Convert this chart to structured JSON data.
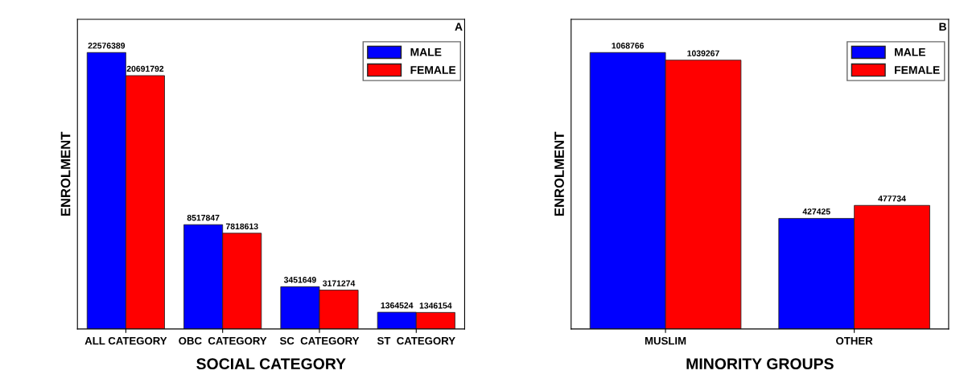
{
  "chart_data": [
    {
      "type": "bar",
      "xlabel": "SOCIAL CATEGORY",
      "ylabel": "ENROLMENT",
      "annotations": [
        "A"
      ],
      "categories": [
        "ALL CATEGORY",
        "OBC  CATEGORY",
        "SC  CATEGORY",
        "ST  CATEGORY"
      ],
      "series": [
        {
          "name": "MALE",
          "color": "#0000ff",
          "values": [
            22576389,
            8517847,
            3451649,
            1364524
          ]
        },
        {
          "name": "FEMALE",
          "color": "#ff0000",
          "values": [
            20691792,
            7818613,
            3171274,
            1346154
          ]
        }
      ],
      "data_labels": true,
      "legend": "top right",
      "tick_labels": "x",
      "grid": false
    },
    {
      "type": "bar",
      "xlabel": "MINORITY GROUPS",
      "ylabel": "ENROLMENT",
      "annotations": [
        "B"
      ],
      "categories": [
        "MUSLIM",
        "OTHER"
      ],
      "series": [
        {
          "name": "MALE",
          "color": "#0000ff",
          "values": [
            1068766,
            427425
          ]
        },
        {
          "name": "FEMALE",
          "color": "#ff0000",
          "values": [
            1039267,
            477734
          ]
        }
      ],
      "data_labels": true,
      "legend": "top right",
      "tick_labels": "x",
      "grid": false
    }
  ]
}
